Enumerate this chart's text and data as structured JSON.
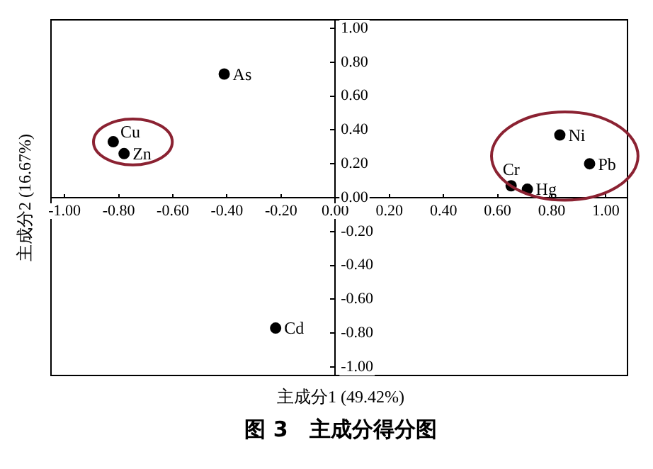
{
  "chart_data": {
    "type": "scatter",
    "title": "图 3　主成分得分图",
    "xlabel": "主成分1 (49.42%)",
    "ylabel": "主成分2 (16.67%)",
    "series": [
      {
        "color": "#000000",
        "x": [
          -0.41,
          -0.82,
          -0.78,
          0.65,
          0.71,
          0.83,
          0.94,
          -0.22
        ],
        "values": [
          0.73,
          0.33,
          0.26,
          0.07,
          0.05,
          0.37,
          0.2,
          -0.77
        ]
      }
    ],
    "annotations": [
      {
        "text": "As",
        "x": -0.41,
        "y": 0.73
      },
      {
        "text": "Cu",
        "x": -0.82,
        "y": 0.33
      },
      {
        "text": "Zn",
        "x": -0.78,
        "y": 0.26
      },
      {
        "text": "Cr",
        "x": 0.65,
        "y": 0.07
      },
      {
        "text": "Hg",
        "x": 0.71,
        "y": 0.05
      },
      {
        "text": "Ni",
        "x": 0.83,
        "y": 0.37
      },
      {
        "text": "Pb",
        "x": 0.94,
        "y": 0.2
      },
      {
        "text": "Cd",
        "x": -0.22,
        "y": -0.77
      }
    ],
    "xlim": [
      -1.05,
      1.08
    ],
    "ylim": [
      -1.05,
      1.05
    ],
    "xticks": [
      {
        "value": -1,
        "label": "-1.00"
      },
      {
        "value": -0.8,
        "label": "-0.80"
      },
      {
        "value": -0.6,
        "label": "-0.60"
      },
      {
        "value": -0.4,
        "label": "-0.40"
      },
      {
        "value": -0.2,
        "label": "-0.20"
      },
      {
        "value": 0,
        "label": "0.00"
      },
      {
        "value": 0.2,
        "label": "0.20"
      },
      {
        "value": 0.4,
        "label": "0.40"
      },
      {
        "value": 0.6,
        "label": "0.60"
      },
      {
        "value": 0.8,
        "label": "0.80"
      },
      {
        "value": 1,
        "label": "1.00"
      }
    ],
    "yticks": [
      {
        "value": -1,
        "label": "-1.00"
      },
      {
        "value": -0.8,
        "label": "-0.80"
      },
      {
        "value": -0.6,
        "label": "-0.60"
      },
      {
        "value": -0.4,
        "label": "-0.40"
      },
      {
        "value": -0.2,
        "label": "-0.20"
      },
      {
        "value": 0,
        "label": "0.00"
      },
      {
        "value": 0.2,
        "label": "0.20"
      },
      {
        "value": 0.4,
        "label": "0.40"
      },
      {
        "value": 0.6,
        "label": "0.60"
      },
      {
        "value": 0.8,
        "label": "0.80"
      },
      {
        "value": 1,
        "label": "1.00"
      }
    ],
    "grid": false,
    "legend": false,
    "marker": "circle"
  }
}
